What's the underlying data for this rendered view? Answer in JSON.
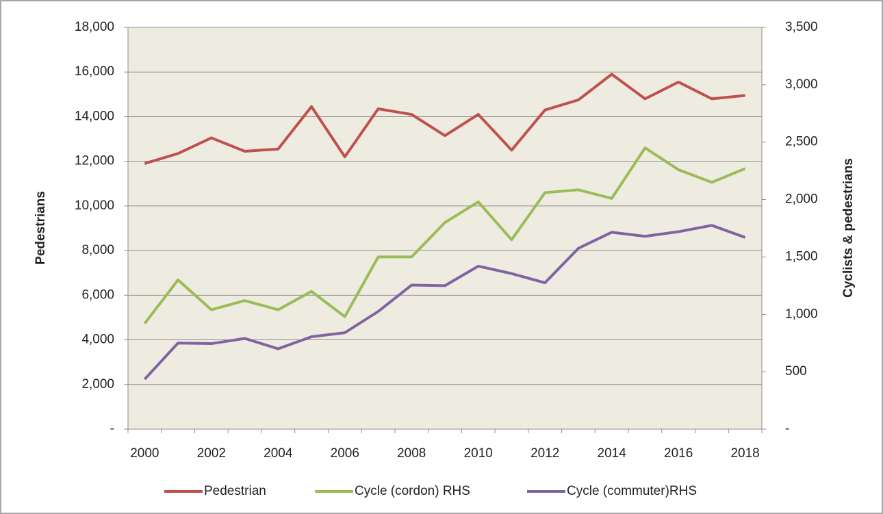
{
  "chart_data": {
    "type": "line",
    "categories": [
      "2000",
      null,
      "2002",
      null,
      "2004",
      null,
      "2006",
      null,
      "2008",
      null,
      "2010",
      null,
      "2012",
      null,
      "2014",
      null,
      "2016",
      null,
      "2018"
    ],
    "y_label": "Pedestrians",
    "y2_label": "Cyclists & pedestrians",
    "ylim": [
      0,
      18000
    ],
    "yticks": [
      {
        "value": 0,
        "label": "-"
      },
      {
        "value": 2000,
        "label": "2,000"
      },
      {
        "value": 4000,
        "label": "4,000"
      },
      {
        "value": 6000,
        "label": "6,000"
      },
      {
        "value": 8000,
        "label": "8,000"
      },
      {
        "value": 10000,
        "label": "10,000"
      },
      {
        "value": 12000,
        "label": "12,000"
      },
      {
        "value": 14000,
        "label": "14,000"
      },
      {
        "value": 16000,
        "label": "16,000"
      },
      {
        "value": 18000,
        "label": "18,000"
      }
    ],
    "y2lim": [
      0,
      3500
    ],
    "y2ticks": [
      {
        "value": 0,
        "label": "-"
      },
      500,
      {
        "value": 1000,
        "label": "1,000"
      },
      {
        "value": 1500,
        "label": "1,500"
      },
      {
        "value": 2000,
        "label": "2,000"
      },
      {
        "value": 2500,
        "label": "2,500"
      },
      {
        "value": 3000,
        "label": "3,000"
      },
      {
        "value": 3500,
        "label": "3,500"
      }
    ],
    "grid": true,
    "legend": "bottom",
    "series": [
      {
        "name": "Pedestrian",
        "color": "#c0504d",
        "values": [
          11900,
          12350,
          13050,
          12450,
          12550,
          14450,
          12200,
          14350,
          14100,
          13150,
          14100,
          12500,
          14300,
          14750,
          15900,
          14800,
          15550,
          14800,
          14950
        ]
      },
      {
        "name": "Cycle (cordon) RHS",
        "color": "#9bbb59",
        "axis": "y2",
        "values": [
          920,
          1300,
          1040,
          1120,
          1040,
          1200,
          980,
          1500,
          1500,
          1800,
          1980,
          1650,
          2060,
          2085,
          2010,
          2450,
          2260,
          2150,
          2270
        ]
      },
      {
        "name": "Cycle (commuter)RHS",
        "color": "#8064a2",
        "axis": "y2",
        "values": [
          435,
          750,
          745,
          790,
          700,
          805,
          840,
          1025,
          1255,
          1250,
          1420,
          1355,
          1275,
          1575,
          1715,
          1680,
          1720,
          1775,
          1670
        ]
      }
    ]
  }
}
